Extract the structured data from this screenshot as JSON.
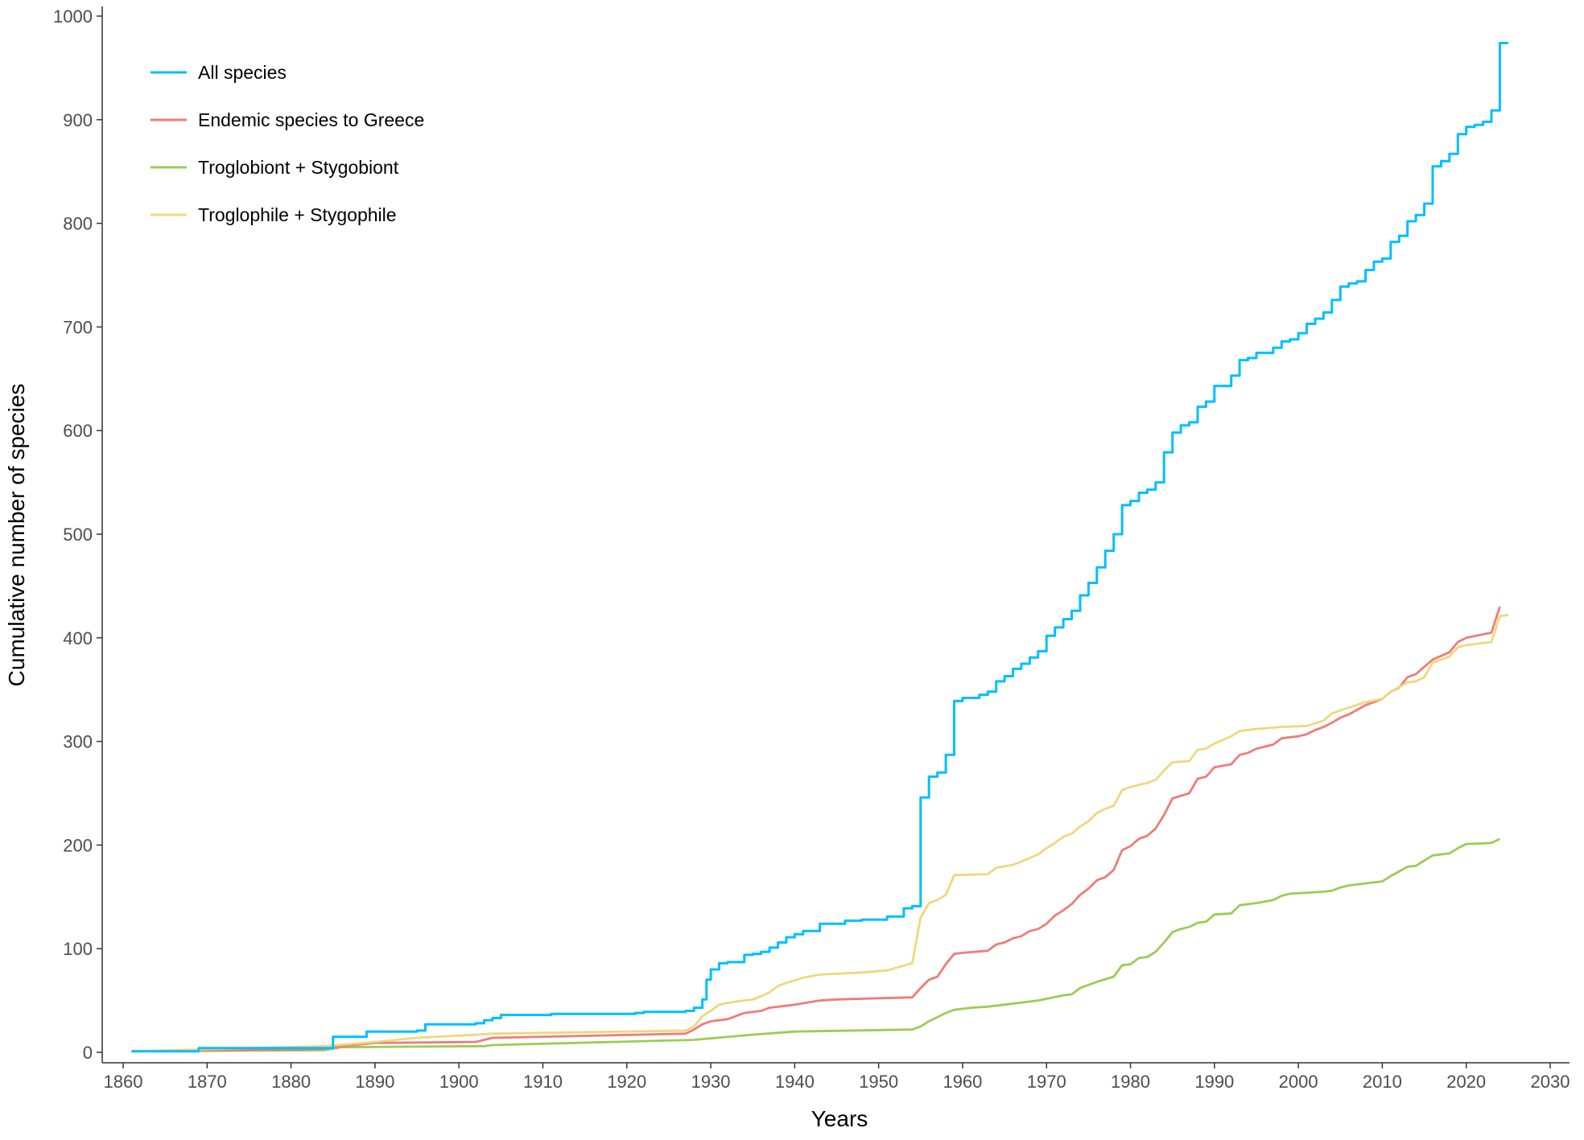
{
  "chart_data": {
    "type": "line",
    "xlabel": "Years",
    "ylabel": "Cumulative number of species",
    "xlim": [
      1857,
      2031
    ],
    "ylim": [
      -12,
      1010
    ],
    "x_ticks": [
      "1860",
      "1870",
      "1880",
      "1890",
      "1900",
      "1910",
      "1920",
      "1930",
      "1940",
      "1950",
      "1960",
      "1970",
      "1980",
      "1990",
      "2000",
      "2010",
      "2020",
      "2030"
    ],
    "y_ticks": [
      "0",
      "100",
      "200",
      "300",
      "400",
      "500",
      "600",
      "700",
      "800",
      "900",
      "1000"
    ],
    "grid": false,
    "legend_position": "top-left",
    "series": [
      {
        "name": "All species",
        "color": "#00BFFF",
        "step": true,
        "points": [
          [
            1861,
            1
          ],
          [
            1869,
            4
          ],
          [
            1885,
            15
          ],
          [
            1889,
            20
          ],
          [
            1895,
            21
          ],
          [
            1896,
            27
          ],
          [
            1902,
            28
          ],
          [
            1903,
            31
          ],
          [
            1904,
            33
          ],
          [
            1905,
            36
          ],
          [
            1911,
            37
          ],
          [
            1918,
            37
          ],
          [
            1921,
            38
          ],
          [
            1922,
            39
          ],
          [
            1927,
            40
          ],
          [
            1928,
            43
          ],
          [
            1929,
            51
          ],
          [
            1929.5,
            70
          ],
          [
            1930,
            80
          ],
          [
            1931,
            86
          ],
          [
            1932,
            87
          ],
          [
            1934,
            94
          ],
          [
            1935,
            95
          ],
          [
            1936,
            97
          ],
          [
            1937,
            101
          ],
          [
            1938,
            106
          ],
          [
            1939,
            111
          ],
          [
            1940,
            114
          ],
          [
            1941,
            117
          ],
          [
            1943,
            124
          ],
          [
            1946,
            127
          ],
          [
            1948,
            128
          ],
          [
            1951,
            131
          ],
          [
            1953,
            139
          ],
          [
            1954,
            141
          ],
          [
            1955,
            246
          ],
          [
            1956,
            266
          ],
          [
            1957,
            270
          ],
          [
            1958,
            287
          ],
          [
            1959,
            339
          ],
          [
            1960,
            342
          ],
          [
            1962,
            345
          ],
          [
            1963,
            348
          ],
          [
            1964,
            358
          ],
          [
            1965,
            363
          ],
          [
            1966,
            370
          ],
          [
            1967,
            375
          ],
          [
            1968,
            381
          ],
          [
            1969,
            387
          ],
          [
            1970,
            402
          ],
          [
            1971,
            410
          ],
          [
            1972,
            418
          ],
          [
            1973,
            426
          ],
          [
            1974,
            441
          ],
          [
            1975,
            453
          ],
          [
            1976,
            468
          ],
          [
            1977,
            484
          ],
          [
            1978,
            500
          ],
          [
            1979,
            528
          ],
          [
            1980,
            532
          ],
          [
            1981,
            540
          ],
          [
            1982,
            543
          ],
          [
            1983,
            550
          ],
          [
            1984,
            579
          ],
          [
            1985,
            598
          ],
          [
            1986,
            605
          ],
          [
            1987,
            608
          ],
          [
            1988,
            623
          ],
          [
            1989,
            628
          ],
          [
            1990,
            643
          ],
          [
            1992,
            653
          ],
          [
            1993,
            668
          ],
          [
            1994,
            670
          ],
          [
            1995,
            675
          ],
          [
            1997,
            680
          ],
          [
            1998,
            686
          ],
          [
            1999,
            688
          ],
          [
            2000,
            694
          ],
          [
            2001,
            703
          ],
          [
            2002,
            708
          ],
          [
            2003,
            714
          ],
          [
            2004,
            726
          ],
          [
            2005,
            739
          ],
          [
            2006,
            742
          ],
          [
            2007,
            744
          ],
          [
            2008,
            755
          ],
          [
            2009,
            763
          ],
          [
            2010,
            766
          ],
          [
            2011,
            782
          ],
          [
            2012,
            788
          ],
          [
            2013,
            802
          ],
          [
            2014,
            808
          ],
          [
            2015,
            819
          ],
          [
            2016,
            855
          ],
          [
            2017,
            860
          ],
          [
            2018,
            867
          ],
          [
            2019,
            886
          ],
          [
            2020,
            893
          ],
          [
            2021,
            895
          ],
          [
            2022,
            898
          ],
          [
            2023,
            909
          ],
          [
            2024,
            974
          ],
          [
            2025,
            974
          ]
        ]
      },
      {
        "name": "Endemic species to Greece",
        "color": "#F07B78",
        "step": false,
        "points": [
          [
            1861,
            1
          ],
          [
            1884,
            3
          ],
          [
            1885,
            5
          ],
          [
            1890,
            9
          ],
          [
            1902,
            10
          ],
          [
            1904,
            14
          ],
          [
            1927,
            18
          ],
          [
            1928,
            22
          ],
          [
            1929,
            27
          ],
          [
            1930,
            30
          ],
          [
            1932,
            32
          ],
          [
            1934,
            38
          ],
          [
            1936,
            40
          ],
          [
            1937,
            43
          ],
          [
            1940,
            46
          ],
          [
            1943,
            50
          ],
          [
            1945,
            51
          ],
          [
            1954,
            53
          ],
          [
            1955,
            62
          ],
          [
            1956,
            70
          ],
          [
            1957,
            73
          ],
          [
            1958,
            85
          ],
          [
            1959,
            95
          ],
          [
            1960,
            96
          ],
          [
            1963,
            98
          ],
          [
            1964,
            104
          ],
          [
            1965,
            106
          ],
          [
            1966,
            110
          ],
          [
            1967,
            112
          ],
          [
            1968,
            117
          ],
          [
            1969,
            119
          ],
          [
            1970,
            124
          ],
          [
            1971,
            132
          ],
          [
            1972,
            137
          ],
          [
            1973,
            143
          ],
          [
            1974,
            152
          ],
          [
            1975,
            158
          ],
          [
            1976,
            166
          ],
          [
            1977,
            169
          ],
          [
            1978,
            176
          ],
          [
            1979,
            195
          ],
          [
            1980,
            199
          ],
          [
            1981,
            206
          ],
          [
            1982,
            209
          ],
          [
            1983,
            216
          ],
          [
            1984,
            229
          ],
          [
            1985,
            245
          ],
          [
            1987,
            250
          ],
          [
            1988,
            264
          ],
          [
            1989,
            266
          ],
          [
            1990,
            275
          ],
          [
            1992,
            278
          ],
          [
            1993,
            287
          ],
          [
            1994,
            289
          ],
          [
            1995,
            293
          ],
          [
            1997,
            297
          ],
          [
            1998,
            303
          ],
          [
            2000,
            305
          ],
          [
            2001,
            307
          ],
          [
            2002,
            311
          ],
          [
            2003,
            314
          ],
          [
            2004,
            318
          ],
          [
            2005,
            323
          ],
          [
            2006,
            326
          ],
          [
            2008,
            335
          ],
          [
            2010,
            341
          ],
          [
            2011,
            348
          ],
          [
            2012,
            352
          ],
          [
            2013,
            362
          ],
          [
            2014,
            365
          ],
          [
            2016,
            379
          ],
          [
            2018,
            386
          ],
          [
            2019,
            396
          ],
          [
            2020,
            400
          ],
          [
            2023,
            405
          ],
          [
            2024,
            430
          ]
        ]
      },
      {
        "name": "Troglobiont + Stygobiont",
        "color": "#9DCB55",
        "step": false,
        "points": [
          [
            1861,
            1
          ],
          [
            1884,
            2
          ],
          [
            1886,
            5
          ],
          [
            1903,
            6
          ],
          [
            1904,
            7
          ],
          [
            1928,
            12
          ],
          [
            1935,
            17
          ],
          [
            1940,
            20
          ],
          [
            1954,
            22
          ],
          [
            1955,
            25
          ],
          [
            1956,
            30
          ],
          [
            1958,
            38
          ],
          [
            1959,
            41
          ],
          [
            1961,
            43
          ],
          [
            1963,
            44
          ],
          [
            1969,
            50
          ],
          [
            1972,
            55
          ],
          [
            1973,
            56
          ],
          [
            1974,
            62
          ],
          [
            1976,
            68
          ],
          [
            1978,
            73
          ],
          [
            1979,
            84
          ],
          [
            1980,
            85
          ],
          [
            1981,
            91
          ],
          [
            1982,
            92
          ],
          [
            1983,
            97
          ],
          [
            1984,
            106
          ],
          [
            1985,
            116
          ],
          [
            1986,
            119
          ],
          [
            1987,
            121
          ],
          [
            1988,
            125
          ],
          [
            1989,
            126
          ],
          [
            1990,
            133
          ],
          [
            1992,
            134
          ],
          [
            1993,
            142
          ],
          [
            1995,
            144
          ],
          [
            1997,
            147
          ],
          [
            1998,
            151
          ],
          [
            1999,
            153
          ],
          [
            2003,
            155
          ],
          [
            2004,
            156
          ],
          [
            2005,
            159
          ],
          [
            2006,
            161
          ],
          [
            2010,
            165
          ],
          [
            2011,
            170
          ],
          [
            2013,
            179
          ],
          [
            2014,
            180
          ],
          [
            2015,
            185
          ],
          [
            2016,
            190
          ],
          [
            2018,
            192
          ],
          [
            2019,
            197
          ],
          [
            2020,
            201
          ],
          [
            2023,
            202
          ],
          [
            2024,
            206
          ]
        ]
      },
      {
        "name": "Troglophile + Stygophile",
        "color": "#EFD87C",
        "step": false,
        "points": [
          [
            1861,
            1
          ],
          [
            1884,
            6
          ],
          [
            1890,
            10
          ],
          [
            1895,
            14
          ],
          [
            1902,
            17
          ],
          [
            1904,
            18
          ],
          [
            1927,
            21
          ],
          [
            1928,
            25
          ],
          [
            1929,
            35
          ],
          [
            1930,
            40
          ],
          [
            1931,
            46
          ],
          [
            1933,
            49
          ],
          [
            1935,
            51
          ],
          [
            1936,
            54
          ],
          [
            1937,
            58
          ],
          [
            1938,
            64
          ],
          [
            1939,
            67
          ],
          [
            1941,
            72
          ],
          [
            1943,
            75
          ],
          [
            1948,
            77
          ],
          [
            1951,
            79
          ],
          [
            1954,
            86
          ],
          [
            1955,
            130
          ],
          [
            1956,
            144
          ],
          [
            1957,
            147
          ],
          [
            1958,
            152
          ],
          [
            1959,
            171
          ],
          [
            1963,
            172
          ],
          [
            1964,
            178
          ],
          [
            1966,
            181
          ],
          [
            1967,
            184
          ],
          [
            1969,
            191
          ],
          [
            1970,
            197
          ],
          [
            1971,
            202
          ],
          [
            1972,
            208
          ],
          [
            1973,
            211
          ],
          [
            1974,
            218
          ],
          [
            1975,
            223
          ],
          [
            1976,
            231
          ],
          [
            1977,
            235
          ],
          [
            1978,
            238
          ],
          [
            1979,
            253
          ],
          [
            1980,
            256
          ],
          [
            1982,
            260
          ],
          [
            1983,
            263
          ],
          [
            1984,
            272
          ],
          [
            1985,
            280
          ],
          [
            1987,
            281
          ],
          [
            1988,
            292
          ],
          [
            1989,
            293
          ],
          [
            1990,
            298
          ],
          [
            1992,
            305
          ],
          [
            1993,
            310
          ],
          [
            1995,
            312
          ],
          [
            1998,
            314
          ],
          [
            2001,
            315
          ],
          [
            2003,
            320
          ],
          [
            2004,
            327
          ],
          [
            2005,
            330
          ],
          [
            2008,
            338
          ],
          [
            2010,
            341
          ],
          [
            2011,
            348
          ],
          [
            2013,
            357
          ],
          [
            2014,
            358
          ],
          [
            2015,
            362
          ],
          [
            2016,
            376
          ],
          [
            2018,
            382
          ],
          [
            2019,
            391
          ],
          [
            2020,
            393
          ],
          [
            2023,
            396
          ],
          [
            2024,
            421
          ],
          [
            2025,
            422
          ]
        ]
      }
    ]
  }
}
